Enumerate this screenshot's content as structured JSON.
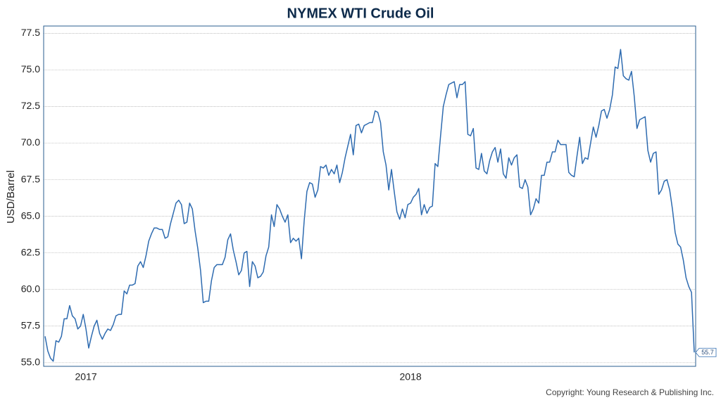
{
  "chart_data": {
    "type": "line",
    "title": "NYMEX WTI Crude Oil",
    "y_label": "USD/Barrel",
    "source": "Copyright: Young Research & Publishing Inc.",
    "categories": [
      null,
      null,
      null,
      null,
      null,
      null,
      null,
      null,
      null,
      null,
      null,
      null,
      null,
      null,
      null,
      "2017",
      null,
      null,
      null,
      null,
      null,
      null,
      null,
      null,
      null,
      null,
      null,
      null,
      null,
      null,
      null,
      null,
      null,
      null,
      null,
      null,
      null,
      null,
      null,
      null,
      null,
      null,
      null,
      null,
      null,
      null,
      null,
      null,
      null,
      null,
      null,
      null,
      null,
      null,
      null,
      null,
      null,
      null,
      null,
      null,
      null,
      null,
      null,
      null,
      null,
      null,
      null,
      null,
      null,
      null,
      null,
      null,
      null,
      null,
      null,
      null,
      null,
      null,
      null,
      null,
      null,
      null,
      null,
      null,
      null,
      null,
      null,
      null,
      null,
      null,
      null,
      null,
      null,
      null,
      null,
      null,
      null,
      null,
      null,
      null,
      null,
      null,
      null,
      null,
      null,
      null,
      null,
      null,
      null,
      null,
      null,
      null,
      null,
      null,
      null,
      null,
      null,
      null,
      null,
      null,
      null,
      null,
      null,
      null,
      null,
      null,
      null,
      null,
      null,
      null,
      null,
      null,
      null,
      null,
      "2018",
      null,
      null,
      null,
      null,
      null,
      null,
      null,
      null,
      null,
      null,
      null,
      null,
      null,
      null,
      null,
      null,
      null,
      null,
      null,
      null,
      null,
      null,
      null,
      null,
      null,
      null,
      null,
      null,
      null,
      null,
      null,
      null,
      null,
      null,
      null,
      null,
      null,
      null,
      null,
      null,
      null,
      null,
      null,
      null,
      null,
      null,
      null,
      null,
      null,
      null,
      null,
      null,
      null,
      null,
      null,
      null,
      null,
      null,
      null,
      null,
      null,
      null,
      null,
      null,
      null,
      null,
      null,
      null,
      null,
      null,
      null,
      null,
      null,
      null,
      null,
      null,
      null,
      null,
      null,
      null,
      null,
      null,
      null,
      null,
      null,
      null,
      null,
      null,
      null,
      null,
      null,
      null,
      null,
      null,
      null,
      null,
      null,
      null,
      null,
      null,
      null,
      null,
      null,
      null
    ],
    "values": [
      56.8,
      55.8,
      55.3,
      55.1,
      56.5,
      56.4,
      56.8,
      58.0,
      58.0,
      58.9,
      58.2,
      58.0,
      57.3,
      57.5,
      58.3,
      57.3,
      56.0,
      56.8,
      57.5,
      57.9,
      57.0,
      56.6,
      57.0,
      57.3,
      57.2,
      57.6,
      58.2,
      58.3,
      58.3,
      59.9,
      59.7,
      60.3,
      60.3,
      60.4,
      61.6,
      61.9,
      61.5,
      62.3,
      63.3,
      63.8,
      64.2,
      64.2,
      64.1,
      64.1,
      63.5,
      63.6,
      64.5,
      65.2,
      65.9,
      66.1,
      65.8,
      64.5,
      64.6,
      65.9,
      65.5,
      64.0,
      62.8,
      61.3,
      59.1,
      59.2,
      59.2,
      60.6,
      61.5,
      61.7,
      61.7,
      61.7,
      62.2,
      63.4,
      63.8,
      62.7,
      61.9,
      61.0,
      61.3,
      62.5,
      62.6,
      60.2,
      61.9,
      61.6,
      60.8,
      60.9,
      61.2,
      62.3,
      62.9,
      65.1,
      64.3,
      65.8,
      65.5,
      65.0,
      64.6,
      65.1,
      63.2,
      63.5,
      63.3,
      63.5,
      62.1,
      64.7,
      66.7,
      67.3,
      67.2,
      66.3,
      66.8,
      68.4,
      68.3,
      68.5,
      67.8,
      68.2,
      67.9,
      68.5,
      67.3,
      68.0,
      69.0,
      69.8,
      70.6,
      69.2,
      71.2,
      71.3,
      70.7,
      71.2,
      71.3,
      71.4,
      71.4,
      72.2,
      72.1,
      71.4,
      69.4,
      68.5,
      66.8,
      68.2,
      66.7,
      65.3,
      64.8,
      65.5,
      64.9,
      65.8,
      65.9,
      66.3,
      66.5,
      66.9,
      65.1,
      65.8,
      65.2,
      65.6,
      65.7,
      68.6,
      68.4,
      70.5,
      72.5,
      73.3,
      74.0,
      74.1,
      74.2,
      73.1,
      74.0,
      74.0,
      74.2,
      70.6,
      70.5,
      71.0,
      68.3,
      68.2,
      69.3,
      68.1,
      67.9,
      68.8,
      69.4,
      69.7,
      68.7,
      69.6,
      67.9,
      67.6,
      69.0,
      68.5,
      69.0,
      69.2,
      67.0,
      66.9,
      67.5,
      67.0,
      65.1,
      65.5,
      66.2,
      65.9,
      67.8,
      67.8,
      68.7,
      68.7,
      69.4,
      69.4,
      70.2,
      69.9,
      69.9,
      69.9,
      68.0,
      67.8,
      67.7,
      69.1,
      70.4,
      68.6,
      69.0,
      68.9,
      70.0,
      71.1,
      70.4,
      71.2,
      72.2,
      72.3,
      71.7,
      72.3,
      73.3,
      75.2,
      75.1,
      76.4,
      74.6,
      74.4,
      74.3,
      74.9,
      73.2,
      71.0,
      71.6,
      71.7,
      71.8,
      69.5,
      68.7,
      69.3,
      69.4,
      66.5,
      66.8,
      67.4,
      67.5,
      66.8,
      65.5,
      63.9,
      63.1,
      62.9,
      62.0,
      60.8,
      60.2,
      59.8,
      55.7
    ],
    "color": "#2e6bb0",
    "ylim": [
      54.75,
      78.0
    ],
    "yticks": [
      {
        "value": 55,
        "label": "55.0"
      },
      57.5,
      {
        "value": 60,
        "label": "60.0"
      },
      62.5,
      {
        "value": 65,
        "label": "65.0"
      },
      67.5,
      {
        "value": 70,
        "label": "70.0"
      },
      72.5,
      {
        "value": 75,
        "label": "75.0"
      },
      77.5
    ],
    "grid": true
  }
}
